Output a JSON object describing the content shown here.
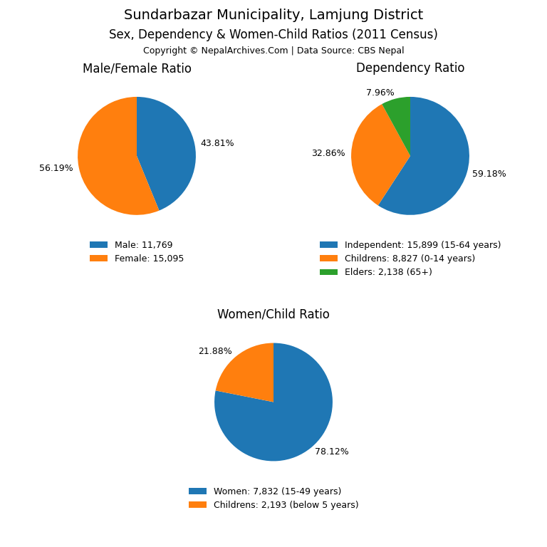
{
  "title": "Sundarbazar Municipality, Lamjung District",
  "subtitle": "Sex, Dependency & Women-Child Ratios (2011 Census)",
  "annotations": [
    "Copyright © NepalArchives.Com | Data Source: CBS Nepal"
  ],
  "chart_data": [
    {
      "type": "pie",
      "title": "Male/Female Ratio",
      "categories": [
        "Male: 11,769",
        "Female: 15,095"
      ],
      "values": [
        43.81,
        56.19
      ],
      "value_labels": [
        "43.81%",
        "56.19%"
      ],
      "legend": "upper center"
    },
    {
      "type": "pie",
      "title": "Dependency Ratio",
      "categories": [
        "Independent: 15,899 (15-64 years)",
        "Childrens: 8,827 (0-14 years)",
        "Elders: 2,138 (65+)"
      ],
      "values": [
        59.18,
        32.86,
        7.96
      ],
      "value_labels": [
        "59.18%",
        "32.86%",
        "7.96%"
      ],
      "legend": "upper center"
    },
    {
      "type": "pie",
      "title": "Women/Child Ratio",
      "categories": [
        "Women: 7,832 (15-49 years)",
        "Childrens: 2,193 (below 5 years)"
      ],
      "values": [
        78.12,
        21.88
      ],
      "value_labels": [
        "78.12%",
        "21.88%"
      ],
      "legend": "upper center"
    }
  ]
}
